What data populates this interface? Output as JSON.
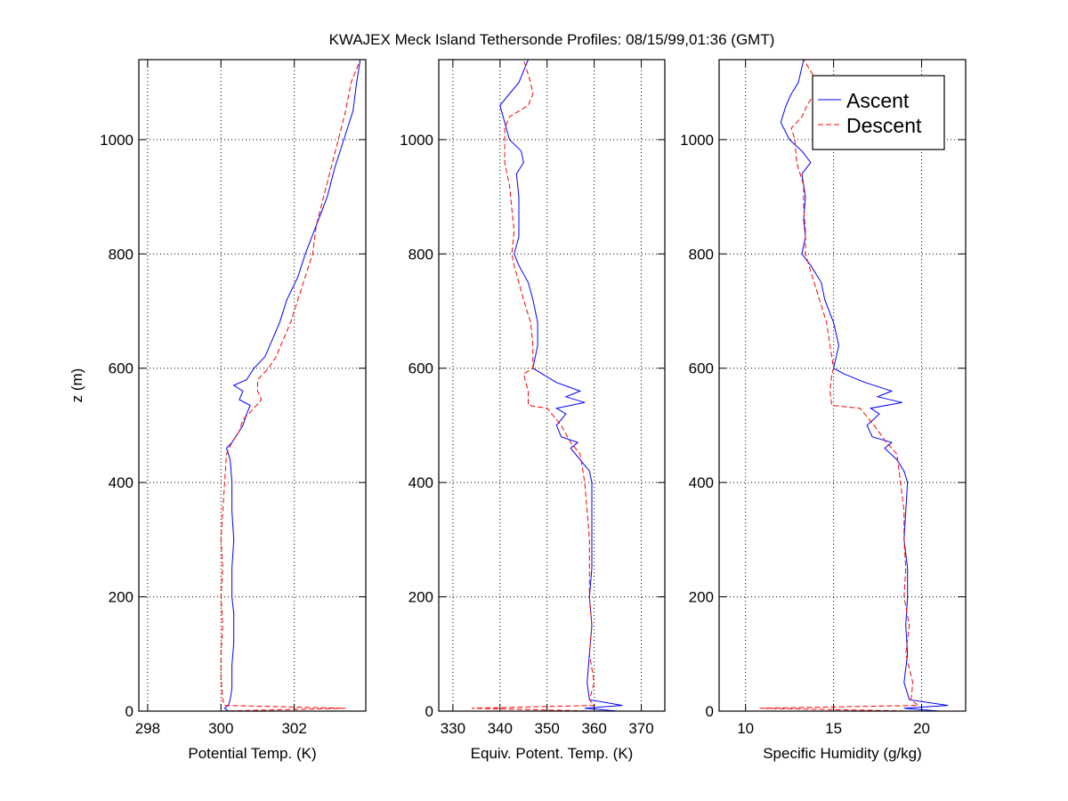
{
  "chart_data": {
    "type": "line",
    "title": "KWAJEX Meck Island Tethersonde Profiles: 08/15/99,01:36 (GMT)",
    "ylabel": "z (m)",
    "ylim": [
      0,
      1140
    ],
    "yticks": [
      0,
      200,
      400,
      600,
      800,
      1000
    ],
    "grid": true,
    "legend": {
      "placement": "top-right of third panel",
      "entries": [
        {
          "name": "Ascent",
          "color": "#0000ff",
          "style": "solid"
        },
        {
          "name": "Descent",
          "color": "#ff0000",
          "style": "dashed"
        }
      ]
    },
    "panels": [
      {
        "id": "potential-temp",
        "xlabel": "Potential Temp. (K)",
        "xlim": [
          297.76,
          303.95
        ],
        "xticks": [
          298,
          300,
          302
        ],
        "series": [
          {
            "name": "Ascent",
            "color": "#0000ff",
            "style": "solid",
            "z": [
              0,
              5,
              10,
              20,
              40,
              80,
              120,
              170,
              200,
              250,
              300,
              350,
              400,
              440,
              460,
              470,
              480,
              500,
              520,
              535,
              545,
              560,
              570,
              580,
              600,
              620,
              650,
              680,
              720,
              760,
              800,
              850,
              900,
              950,
              1000,
              1050,
              1100,
              1140
            ],
            "x": [
              300.2,
              300.1,
              300.2,
              300.25,
              300.3,
              300.3,
              300.35,
              300.35,
              300.3,
              300.3,
              300.35,
              300.3,
              300.3,
              300.25,
              300.15,
              300.3,
              300.4,
              300.6,
              300.7,
              300.8,
              300.5,
              300.6,
              300.35,
              300.7,
              300.9,
              301.2,
              301.4,
              301.6,
              301.8,
              302.1,
              302.3,
              302.6,
              302.9,
              303.1,
              303.35,
              303.6,
              303.7,
              303.8
            ]
          },
          {
            "name": "Descent",
            "color": "#ff0000",
            "style": "dashed",
            "z": [
              0,
              5,
              10,
              20,
              60,
              100,
              150,
              200,
              250,
              300,
              350,
              400,
              450,
              470,
              490,
              510,
              530,
              545,
              560,
              580,
              600,
              620,
              650,
              680,
              720,
              760,
              800,
              850,
              900,
              950,
              1000,
              1050,
              1100,
              1140
            ],
            "x": [
              300.0,
              303.4,
              300.1,
              300.05,
              300.0,
              300.0,
              300.05,
              300.0,
              300.05,
              300.0,
              300.05,
              300.1,
              300.15,
              300.3,
              300.5,
              300.6,
              300.9,
              301.1,
              301.0,
              301.0,
              301.3,
              301.5,
              301.7,
              301.9,
              302.1,
              302.3,
              302.5,
              302.6,
              302.8,
              303.0,
              303.2,
              303.4,
              303.55,
              303.8
            ]
          }
        ]
      },
      {
        "id": "equiv-potent-temp",
        "xlabel": "Equiv. Potent. Temp. (K)",
        "xlim": [
          327,
          375
        ],
        "xticks": [
          330,
          340,
          350,
          360,
          370
        ],
        "series": [
          {
            "name": "Ascent",
            "color": "#0000ff",
            "style": "solid",
            "z": [
              0,
              5,
              10,
              20,
              50,
              100,
              150,
              200,
              250,
              300,
              350,
              400,
              420,
              440,
              460,
              470,
              480,
              500,
              520,
              530,
              540,
              550,
              560,
              575,
              590,
              600,
              640,
              680,
              720,
              750,
              780,
              800,
              830,
              860,
              900,
              940,
              960,
              980,
              1000,
              1030,
              1060,
              1080,
              1100,
              1140
            ],
            "x": [
              365,
              358,
              366,
              359,
              358.5,
              359,
              359.5,
              359,
              359.5,
              359.5,
              359.5,
              359.5,
              359,
              357,
              355,
              356.5,
              353,
              352,
              354,
              352,
              358,
              354,
              357,
              352,
              349,
              347,
              348,
              348,
              347,
              346,
              344,
              343,
              344,
              344,
              344,
              343.5,
              345,
              344.5,
              342,
              341,
              340,
              342,
              344,
              346
            ]
          },
          {
            "name": "Descent",
            "color": "#ff0000",
            "style": "dashed",
            "z": [
              0,
              5,
              10,
              20,
              50,
              100,
              150,
              200,
              250,
              300,
              350,
              400,
              450,
              470,
              500,
              530,
              535,
              560,
              590,
              600,
              640,
              680,
              720,
              750,
              780,
              800,
              840,
              880,
              920,
              960,
              1000,
              1020,
              1040,
              1060,
              1080,
              1100,
              1140
            ],
            "x": [
              360,
              334,
              360,
              359,
              360,
              359,
              359.5,
              359,
              359,
              359,
              358.5,
              358,
              357,
              355,
              353,
              350,
              346,
              346,
              345,
              347,
              347,
              346.5,
              345,
              344,
              343,
              342.5,
              343,
              342.5,
              342,
              341,
              341,
              341,
              342,
              346,
              347,
              346.5,
              345
            ]
          }
        ]
      },
      {
        "id": "specific-humidity",
        "xlabel": "Specific Humidity (g/kg)",
        "xlim": [
          8.5,
          22.5
        ],
        "xticks": [
          10,
          15,
          20
        ],
        "series": [
          {
            "name": "Ascent",
            "color": "#0000ff",
            "style": "solid",
            "z": [
              0,
              5,
              10,
              20,
              50,
              100,
              150,
              200,
              250,
              300,
              350,
              400,
              420,
              440,
              460,
              470,
              480,
              500,
              520,
              530,
              540,
              550,
              560,
              575,
              590,
              600,
              640,
              680,
              720,
              750,
              780,
              800,
              830,
              860,
              900,
              940,
              960,
              980,
              1000,
              1030,
              1060,
              1080,
              1100,
              1140
            ],
            "x": [
              21,
              19,
              21.5,
              19.3,
              19.0,
              19.2,
              19.1,
              19.2,
              19.2,
              19.0,
              19.1,
              19.2,
              19.0,
              18.6,
              17.9,
              18.3,
              17.2,
              16.9,
              17.6,
              17.1,
              18.9,
              17.5,
              18.3,
              16.8,
              15.6,
              15.0,
              15.3,
              15.0,
              14.5,
              14.3,
              13.7,
              13.2,
              13.4,
              13.3,
              13.4,
              13.2,
              13.7,
              13.2,
              12.5,
              12.0,
              12.3,
              12.6,
              13.0,
              13.3
            ]
          },
          {
            "name": "Descent",
            "color": "#ff0000",
            "style": "dashed",
            "z": [
              0,
              5,
              10,
              20,
              50,
              100,
              150,
              200,
              250,
              300,
              350,
              400,
              450,
              470,
              500,
              530,
              535,
              560,
              590,
              600,
              640,
              680,
              720,
              750,
              780,
              800,
              840,
              880,
              920,
              960,
              1000,
              1020,
              1040,
              1060,
              1080,
              1100,
              1140
            ],
            "x": [
              19.5,
              10.8,
              19.8,
              19.4,
              19.5,
              19.1,
              19.3,
              19.0,
              19.1,
              19.0,
              19.0,
              18.8,
              18.6,
              18.0,
              17.3,
              16.5,
              14.9,
              14.8,
              14.9,
              15.0,
              14.8,
              14.6,
              14.2,
              13.9,
              13.6,
              13.4,
              13.4,
              13.3,
              13.3,
              12.9,
              12.8,
              12.6,
              13.2,
              13.5,
              13.9,
              14.1,
              13.3
            ]
          }
        ]
      }
    ]
  }
}
